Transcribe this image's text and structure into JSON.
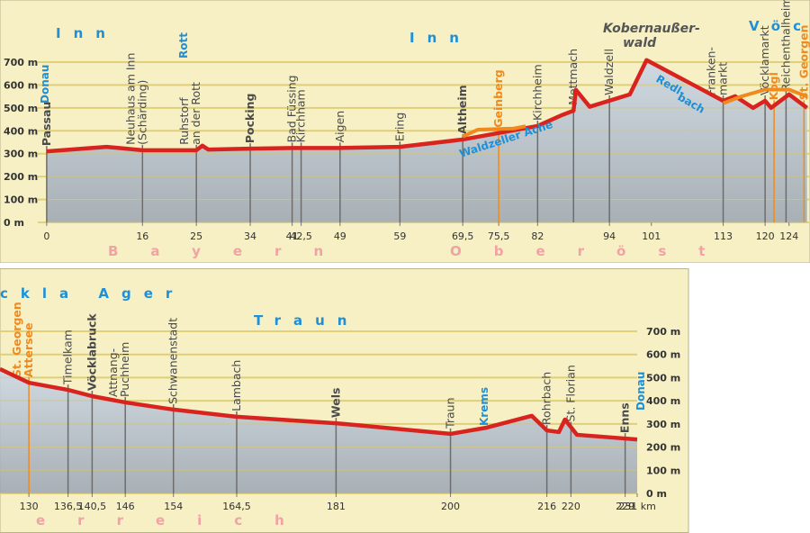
{
  "chart_data": [
    {
      "type": "line",
      "xlim": [
        -7.8,
        127.5
      ],
      "ylim": [
        0,
        700
      ],
      "yticks": [
        {
          "value": 0,
          "label": "0 m"
        },
        {
          "value": 100,
          "label": "100 m"
        },
        {
          "value": 200,
          "label": "200 m"
        },
        {
          "value": 300,
          "label": "300 m"
        },
        {
          "value": 400,
          "label": "400 m"
        },
        {
          "value": 500,
          "label": "500 m"
        },
        {
          "value": 600,
          "label": "600 m"
        },
        {
          "value": 700,
          "label": "700 m"
        }
      ],
      "xticks": [
        0,
        16,
        25,
        34,
        41,
        {
          "value": 42.5,
          "label": "42,5"
        },
        49,
        59,
        {
          "value": 69.5,
          "label": "69,5"
        },
        {
          "value": 75.5,
          "label": "75,5"
        },
        82,
        94,
        101,
        113,
        120,
        124
      ],
      "series": [
        {
          "color": "#d8231f",
          "x": [
            0,
            10,
            16,
            25,
            26,
            27,
            34,
            41,
            49,
            59,
            69.5,
            82,
            86,
            88,
            88.4,
            90.7,
            97.4,
            100.2,
            113,
            115,
            118,
            120,
            121,
            124,
            127
          ],
          "values": [
            310,
            330,
            315,
            315,
            335,
            318,
            322,
            325,
            325,
            330,
            362,
            421,
            468,
            488,
            579,
            505,
            559,
            709,
            531,
            551,
            500,
            531,
            500,
            559,
            500
          ]
        },
        {
          "color": "#f08a1e",
          "x": [
            69.5,
            72,
            78,
            80
          ],
          "values": [
            375,
            405,
            410,
            420
          ]
        },
        {
          "color": "#f08a1e",
          "x": [
            113,
            116,
            120,
            124,
            127
          ],
          "values": [
            520,
            550,
            580,
            580,
            550
          ]
        }
      ],
      "stations": [
        {
          "name": [
            "Passau"
          ],
          "x": 0,
          "bold": true
        },
        {
          "name": [
            "Neuhaus am Inn",
            "(Schärding)"
          ],
          "x": 16
        },
        {
          "name": [
            "Ruhstorf",
            "an der Rott"
          ],
          "x": 25
        },
        {
          "name": [
            "Pocking"
          ],
          "x": 34,
          "bold": true
        },
        {
          "name": [
            "Bad Füssing"
          ],
          "x": 41
        },
        {
          "name": [
            "Kirchham"
          ],
          "x": 42.5
        },
        {
          "name": [
            "Aigen"
          ],
          "x": 49
        },
        {
          "name": [
            "Ering"
          ],
          "x": 59
        },
        {
          "name": [
            "Altheim"
          ],
          "x": 69.5,
          "bold": true
        },
        {
          "name": [
            "Geinberg"
          ],
          "x": 75.5,
          "bold": true,
          "color": "#f08a1e"
        },
        {
          "name": [
            "Kirchheim"
          ],
          "x": 82
        },
        {
          "name": [
            "Mettmach"
          ],
          "x": 88
        },
        {
          "name": [
            "Waldzell"
          ],
          "x": 94
        },
        {
          "name": [
            "Franken-",
            "markt"
          ],
          "x": 113
        },
        {
          "name": [
            "Vöcklamarkt"
          ],
          "x": 120
        },
        {
          "name": [
            "Kogl"
          ],
          "x": 121.5,
          "bold": true,
          "color": "#f08a1e"
        },
        {
          "name": [
            "Reichenthalheim"
          ],
          "x": 123.5
        },
        {
          "name": [
            "St. Georgen"
          ],
          "x": 126.5,
          "bold": true,
          "color": "#f08a1e"
        }
      ],
      "labels": [
        "Inn",
        "Inn",
        "Vöc",
        "Donau",
        "Rott",
        "Waldzeller Ache",
        "Redl-",
        "bach",
        "Kobernaußer-",
        "wald"
      ],
      "region": [
        "Bayern",
        "Oberöst"
      ]
    },
    {
      "type": "line",
      "xlim": [
        125.2,
        231
      ],
      "ylim": [
        0,
        700
      ],
      "yticks": [
        {
          "value": 0,
          "label": "0 m"
        },
        {
          "value": 100,
          "label": "100 m"
        },
        {
          "value": 200,
          "label": "200 m"
        },
        {
          "value": 300,
          "label": "300 m"
        },
        {
          "value": 400,
          "label": "400 m"
        },
        {
          "value": 500,
          "label": "500 m"
        },
        {
          "value": 600,
          "label": "600 m"
        },
        {
          "value": 700,
          "label": "700 m"
        }
      ],
      "xticks": [
        130,
        {
          "value": 136.5,
          "label": "136,5"
        },
        {
          "value": 140.5,
          "label": "140,5"
        },
        146,
        154,
        {
          "value": 164.5,
          "label": "164,5"
        },
        181,
        200,
        216,
        220,
        229,
        {
          "value": 231,
          "label": "231 km"
        }
      ],
      "series": [
        {
          "color": "#d8231f",
          "x": [
            125.2,
            130,
            136.5,
            140.5,
            146,
            154,
            164.5,
            181,
            200,
            206,
            213.5,
            216,
            218,
            219,
            221,
            229,
            231
          ],
          "values": [
            537,
            478,
            447,
            420,
            393,
            362,
            331,
            303,
            257,
            284,
            335,
            272,
            265,
            319,
            253,
            237,
            233
          ]
        }
      ],
      "stations": [
        {
          "name": [
            "St. Georgen",
            "Attersee"
          ],
          "x": 130,
          "bold": true,
          "color": "#f08a1e"
        },
        {
          "name": [
            "Timelkam"
          ],
          "x": 136.5
        },
        {
          "name": [
            "Vöcklabruck"
          ],
          "x": 140.5,
          "bold": true
        },
        {
          "name": [
            "Attnang-",
            "Puchheim"
          ],
          "x": 146
        },
        {
          "name": [
            "Schwanenstadt"
          ],
          "x": 154
        },
        {
          "name": [
            "Lambach"
          ],
          "x": 164.5
        },
        {
          "name": [
            "Wels"
          ],
          "x": 181,
          "bold": true
        },
        {
          "name": [
            "Traun"
          ],
          "x": 200
        },
        {
          "name": [
            "Rohrbach"
          ],
          "x": 216
        },
        {
          "name": [
            "St. Florian"
          ],
          "x": 220
        },
        {
          "name": [
            "Enns"
          ],
          "x": 229,
          "bold": true
        }
      ],
      "labels": [
        "ckla Ager",
        "Traun",
        "Krems",
        "Donau"
      ],
      "region": [
        "erreich"
      ]
    }
  ]
}
